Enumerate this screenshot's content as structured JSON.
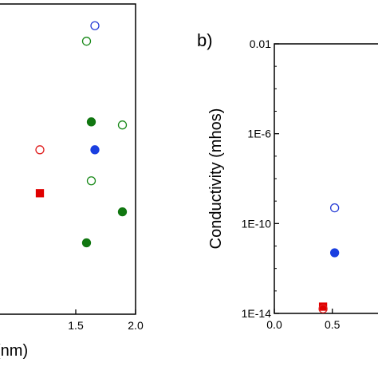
{
  "chart_data": [
    {
      "type": "scatter",
      "panel_label": "",
      "xlabel": "(nm)",
      "ylabel": "",
      "xlim": [
        0.8,
        2.0
      ],
      "ylim": [
        0,
        10
      ],
      "xticks": [
        "1.5",
        "2.0"
      ],
      "xtick_values": [
        1.5,
        2.0
      ],
      "points": [
        {
          "x": 1.66,
          "y": 9.3,
          "shape": "circle",
          "fill": "open",
          "color": "#2a3fd6"
        },
        {
          "x": 1.59,
          "y": 8.8,
          "shape": "circle",
          "fill": "open",
          "color": "#1a8a1a"
        },
        {
          "x": 1.63,
          "y": 6.2,
          "shape": "circle",
          "fill": "filled",
          "color": "#117711"
        },
        {
          "x": 1.89,
          "y": 6.1,
          "shape": "circle",
          "fill": "open",
          "color": "#1a8a1a"
        },
        {
          "x": 1.2,
          "y": 5.3,
          "shape": "circle",
          "fill": "open",
          "color": "#e02020"
        },
        {
          "x": 1.66,
          "y": 5.3,
          "shape": "circle",
          "fill": "filled",
          "color": "#1a3fe0"
        },
        {
          "x": 1.63,
          "y": 4.3,
          "shape": "circle",
          "fill": "open",
          "color": "#1a8a1a"
        },
        {
          "x": 1.2,
          "y": 3.9,
          "shape": "square",
          "fill": "filled",
          "color": "#e00000"
        },
        {
          "x": 1.89,
          "y": 3.3,
          "shape": "circle",
          "fill": "filled",
          "color": "#117711"
        },
        {
          "x": 1.59,
          "y": 2.3,
          "shape": "circle",
          "fill": "filled",
          "color": "#117711"
        }
      ]
    },
    {
      "type": "scatter",
      "panel_label": "b)",
      "xlabel": "",
      "ylabel": "Conductivity (mhos)",
      "xlim": [
        0.0,
        1.1
      ],
      "ylim": [
        1e-14,
        0.01
      ],
      "yscale": "log",
      "yticks": [
        "0.01",
        "1E-6",
        "1E-10",
        "1E-14"
      ],
      "ytick_values": [
        0.01,
        1e-06,
        1e-10,
        1e-14
      ],
      "xticks": [
        "0.0",
        "0.5"
      ],
      "xtick_values": [
        0.0,
        0.5
      ],
      "points": [
        {
          "x": 0.52,
          "y": 5e-10,
          "shape": "circle",
          "fill": "open",
          "color": "#2a3fd6"
        },
        {
          "x": 0.52,
          "y": 5e-12,
          "shape": "circle",
          "fill": "filled",
          "color": "#1a3fe0"
        },
        {
          "x": 0.42,
          "y": 2e-14,
          "shape": "square",
          "fill": "filled",
          "color": "#e00000"
        },
        {
          "x": 0.42,
          "y": 1.6e-14,
          "shape": "circle",
          "fill": "open",
          "color": "#e02020"
        }
      ]
    }
  ]
}
